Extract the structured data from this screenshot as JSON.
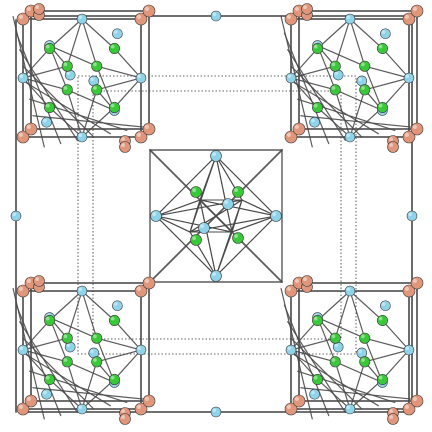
{
  "structure": {
    "atom_colors": {
      "salmon": "#e0967a",
      "skyblue": "#8fd3ea",
      "green": "#38c838"
    },
    "bond_color": "#4a4a4a",
    "cell_outline_color": "#333333",
    "background": "#ffffff"
  }
}
